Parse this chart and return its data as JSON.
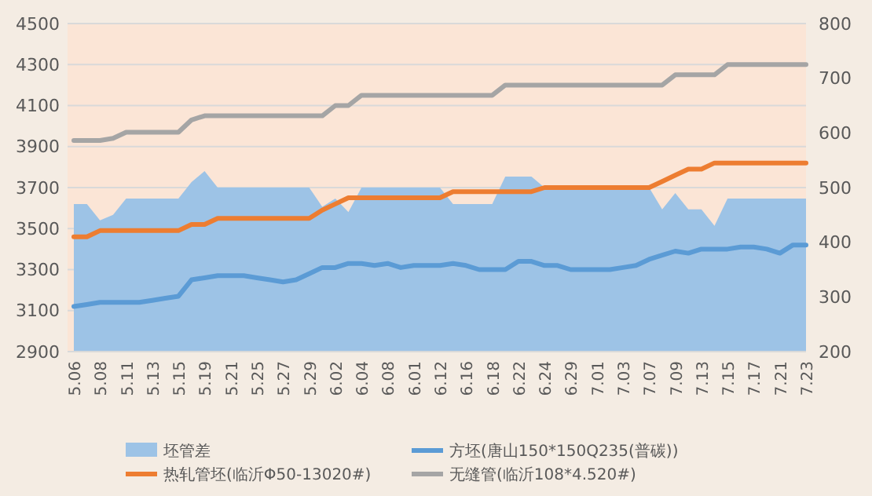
{
  "chart_data": {
    "type": "line",
    "categories": [
      "5.06",
      null,
      "5.08",
      null,
      "5.11",
      null,
      "5.13",
      null,
      "5.15",
      null,
      "5.19",
      null,
      "5.21",
      null,
      "5.25",
      null,
      "5.27",
      null,
      "5.29",
      null,
      "6.02",
      null,
      "6.04",
      null,
      "6.08",
      null,
      "6.01",
      null,
      "6.12",
      null,
      "6.16",
      null,
      "6.18",
      null,
      "6.22",
      null,
      "6.24",
      null,
      "6.29",
      null,
      "7.01",
      null,
      "7.03",
      null,
      "7.07",
      null,
      "7.09",
      null,
      "7.13",
      null,
      "7.15",
      null,
      "7.17",
      null,
      "7.21",
      null,
      "7.23"
    ],
    "series": [
      {
        "name": "坯管差",
        "type": "area",
        "axis": "y2",
        "color": "#9dc3e6",
        "values": [
          470,
          470,
          440,
          450,
          480,
          480,
          480,
          480,
          480,
          510,
          530,
          500,
          500,
          500,
          500,
          500,
          500,
          500,
          500,
          465,
          480,
          455,
          500,
          500,
          500,
          500,
          500,
          500,
          500,
          470,
          470,
          470,
          470,
          520,
          520,
          520,
          500,
          500,
          500,
          500,
          500,
          500,
          500,
          500,
          500,
          460,
          490,
          460,
          460,
          430,
          480,
          480,
          480,
          480,
          480,
          480,
          480
        ]
      },
      {
        "name": "方坯(唐山150*150Q235(普碳))",
        "type": "line",
        "color": "#5b9bd5",
        "values": [
          3120,
          3130,
          3140,
          3140,
          3140,
          3140,
          3150,
          3160,
          3170,
          3250,
          3260,
          3270,
          3270,
          3270,
          3260,
          3250,
          3240,
          3250,
          3280,
          3310,
          3310,
          3330,
          3330,
          3320,
          3330,
          3310,
          3320,
          3320,
          3320,
          3330,
          3320,
          3300,
          3300,
          3300,
          3340,
          3340,
          3320,
          3320,
          3300,
          3300,
          3300,
          3300,
          3310,
          3320,
          3350,
          3370,
          3390,
          3380,
          3400,
          3400,
          3400,
          3410,
          3410,
          3400,
          3380,
          3420,
          3420
        ]
      },
      {
        "name": "热轧管坯(临沂Φ50-13020#)",
        "type": "line",
        "color": "#ed7d31",
        "values": [
          3460,
          3460,
          3490,
          3490,
          3490,
          3490,
          3490,
          3490,
          3490,
          3520,
          3520,
          3550,
          3550,
          3550,
          3550,
          3550,
          3550,
          3550,
          3550,
          3590,
          3620,
          3650,
          3650,
          3650,
          3650,
          3650,
          3650,
          3650,
          3650,
          3680,
          3680,
          3680,
          3680,
          3680,
          3680,
          3680,
          3700,
          3700,
          3700,
          3700,
          3700,
          3700,
          3700,
          3700,
          3700,
          3730,
          3760,
          3790,
          3790,
          3820,
          3820,
          3820,
          3820,
          3820,
          3820,
          3820,
          3820
        ]
      },
      {
        "name": "无缝管(临沂108*4.520#)",
        "type": "line",
        "color": "#a5a5a5",
        "values": [
          3930,
          3930,
          3930,
          3940,
          3970,
          3970,
          3970,
          3970,
          3970,
          4030,
          4050,
          4050,
          4050,
          4050,
          4050,
          4050,
          4050,
          4050,
          4050,
          4050,
          4100,
          4100,
          4150,
          4150,
          4150,
          4150,
          4150,
          4150,
          4150,
          4150,
          4150,
          4150,
          4150,
          4200,
          4200,
          4200,
          4200,
          4200,
          4200,
          4200,
          4200,
          4200,
          4200,
          4200,
          4200,
          4200,
          4250,
          4250,
          4250,
          4250,
          4300,
          4300,
          4300,
          4300,
          4300,
          4300,
          4300
        ]
      }
    ],
    "ylim": [
      2900,
      4500
    ],
    "yticks": [
      2900,
      3100,
      3300,
      3500,
      3700,
      3900,
      4100,
      4300,
      4500
    ],
    "y2lim": [
      200,
      800
    ],
    "y2ticks": [
      200,
      300,
      400,
      500,
      600,
      700,
      800
    ],
    "grid": "y",
    "legend": "bottom",
    "marker": "none",
    "line_style": "solid"
  }
}
